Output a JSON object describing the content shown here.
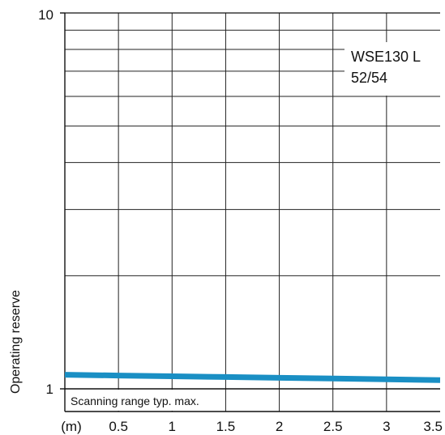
{
  "chart_data": {
    "type": "line",
    "title": "",
    "xlabel": "(m)",
    "ylabel": "Operating reserve",
    "x_scale": "linear",
    "y_scale": "log",
    "xlim": [
      0,
      3.5
    ],
    "ylim": [
      1,
      10
    ],
    "x_ticks": [
      {
        "value": 0.5,
        "label": "0.5"
      },
      {
        "value": 1,
        "label": "1"
      },
      {
        "value": 1.5,
        "label": "1.5"
      },
      {
        "value": 2,
        "label": "2"
      },
      {
        "value": 2.5,
        "label": "2.5"
      },
      {
        "value": 3,
        "label": "3"
      },
      {
        "value": 3.5,
        "label": "3.5"
      }
    ],
    "y_ticks": [
      {
        "value": 1,
        "label": "1"
      },
      {
        "value": 10,
        "label": "10"
      }
    ],
    "grid": true,
    "y_minor_grid": [
      2,
      3,
      4,
      5,
      6,
      7,
      8,
      9
    ],
    "series": [
      {
        "name": "WSE130 L 52/54",
        "color": "#1a8fc4",
        "x": [
          0,
          0.5,
          1,
          1.5,
          2,
          2.5,
          3,
          3.5
        ],
        "y": [
          1.09,
          1.085,
          1.08,
          1.075,
          1.07,
          1.065,
          1.06,
          1.055
        ]
      }
    ],
    "legend": {
      "placement": "top-right",
      "lines": [
        "WSE130 L",
        "52/54"
      ]
    },
    "annotations": [
      {
        "text": "Scanning range typ. max."
      }
    ]
  }
}
